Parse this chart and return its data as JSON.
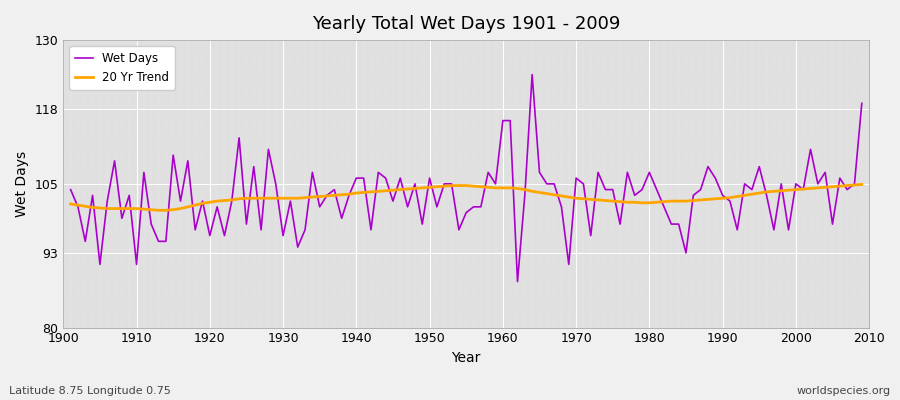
{
  "title": "Yearly Total Wet Days 1901 - 2009",
  "xlabel": "Year",
  "ylabel": "Wet Days",
  "footnote_left": "Latitude 8.75 Longitude 0.75",
  "footnote_right": "worldspecies.org",
  "line_color": "#AA00CC",
  "trend_color": "#FFA500",
  "bg_color": "#F0F0F0",
  "plot_bg_color": "#E0E0E0",
  "ylim": [
    80,
    130
  ],
  "yticks": [
    80,
    93,
    105,
    118,
    130
  ],
  "xlim": [
    1901,
    2009
  ],
  "years": [
    1901,
    1902,
    1903,
    1904,
    1905,
    1906,
    1907,
    1908,
    1909,
    1910,
    1911,
    1912,
    1913,
    1914,
    1915,
    1916,
    1917,
    1918,
    1919,
    1920,
    1921,
    1922,
    1923,
    1924,
    1925,
    1926,
    1927,
    1928,
    1929,
    1930,
    1931,
    1932,
    1933,
    1934,
    1935,
    1936,
    1937,
    1938,
    1939,
    1940,
    1941,
    1942,
    1943,
    1944,
    1945,
    1946,
    1947,
    1948,
    1949,
    1950,
    1951,
    1952,
    1953,
    1954,
    1955,
    1956,
    1957,
    1958,
    1959,
    1960,
    1961,
    1962,
    1963,
    1964,
    1965,
    1966,
    1967,
    1968,
    1969,
    1970,
    1971,
    1972,
    1973,
    1974,
    1975,
    1976,
    1977,
    1978,
    1979,
    1980,
    1981,
    1982,
    1983,
    1984,
    1985,
    1986,
    1987,
    1988,
    1989,
    1990,
    1991,
    1992,
    1993,
    1994,
    1995,
    1996,
    1997,
    1998,
    1999,
    2000,
    2001,
    2002,
    2003,
    2004,
    2005,
    2006,
    2007,
    2008,
    2009
  ],
  "wet_days": [
    104,
    101,
    95,
    103,
    91,
    102,
    109,
    99,
    103,
    91,
    107,
    98,
    95,
    95,
    110,
    102,
    109,
    97,
    102,
    96,
    101,
    96,
    102,
    113,
    98,
    108,
    97,
    111,
    105,
    96,
    102,
    94,
    97,
    107,
    101,
    103,
    104,
    99,
    103,
    106,
    106,
    97,
    107,
    106,
    102,
    106,
    101,
    105,
    98,
    106,
    101,
    105,
    105,
    97,
    100,
    101,
    101,
    107,
    105,
    116,
    116,
    88,
    103,
    124,
    107,
    105,
    105,
    101,
    91,
    106,
    105,
    96,
    107,
    104,
    104,
    98,
    107,
    103,
    104,
    107,
    104,
    101,
    98,
    98,
    93,
    103,
    104,
    108,
    106,
    103,
    102,
    97,
    105,
    104,
    108,
    103,
    97,
    105,
    97,
    105,
    104,
    111,
    105,
    107,
    98,
    106,
    104,
    105,
    119
  ],
  "trend_values": [
    101.5,
    101.3,
    101.1,
    100.9,
    100.8,
    100.7,
    100.7,
    100.7,
    100.7,
    100.7,
    100.6,
    100.5,
    100.4,
    100.4,
    100.5,
    100.7,
    101.0,
    101.3,
    101.6,
    101.8,
    102.0,
    102.1,
    102.2,
    102.4,
    102.5,
    102.5,
    102.5,
    102.5,
    102.5,
    102.5,
    102.5,
    102.5,
    102.6,
    102.7,
    102.8,
    102.9,
    103.0,
    103.1,
    103.2,
    103.4,
    103.5,
    103.6,
    103.7,
    103.8,
    103.9,
    104.0,
    104.1,
    104.2,
    104.3,
    104.4,
    104.5,
    104.6,
    104.7,
    104.7,
    104.7,
    104.6,
    104.5,
    104.4,
    104.3,
    104.3,
    104.3,
    104.2,
    104.0,
    103.7,
    103.5,
    103.3,
    103.1,
    102.9,
    102.7,
    102.5,
    102.4,
    102.3,
    102.2,
    102.1,
    102.0,
    101.9,
    101.8,
    101.8,
    101.7,
    101.7,
    101.8,
    101.9,
    102.0,
    102.0,
    102.0,
    102.1,
    102.2,
    102.3,
    102.4,
    102.5,
    102.6,
    102.8,
    103.0,
    103.2,
    103.4,
    103.6,
    103.7,
    103.8,
    103.9,
    104.0,
    104.1,
    104.2,
    104.3,
    104.4,
    104.5,
    104.6,
    104.7,
    104.8,
    104.9
  ]
}
